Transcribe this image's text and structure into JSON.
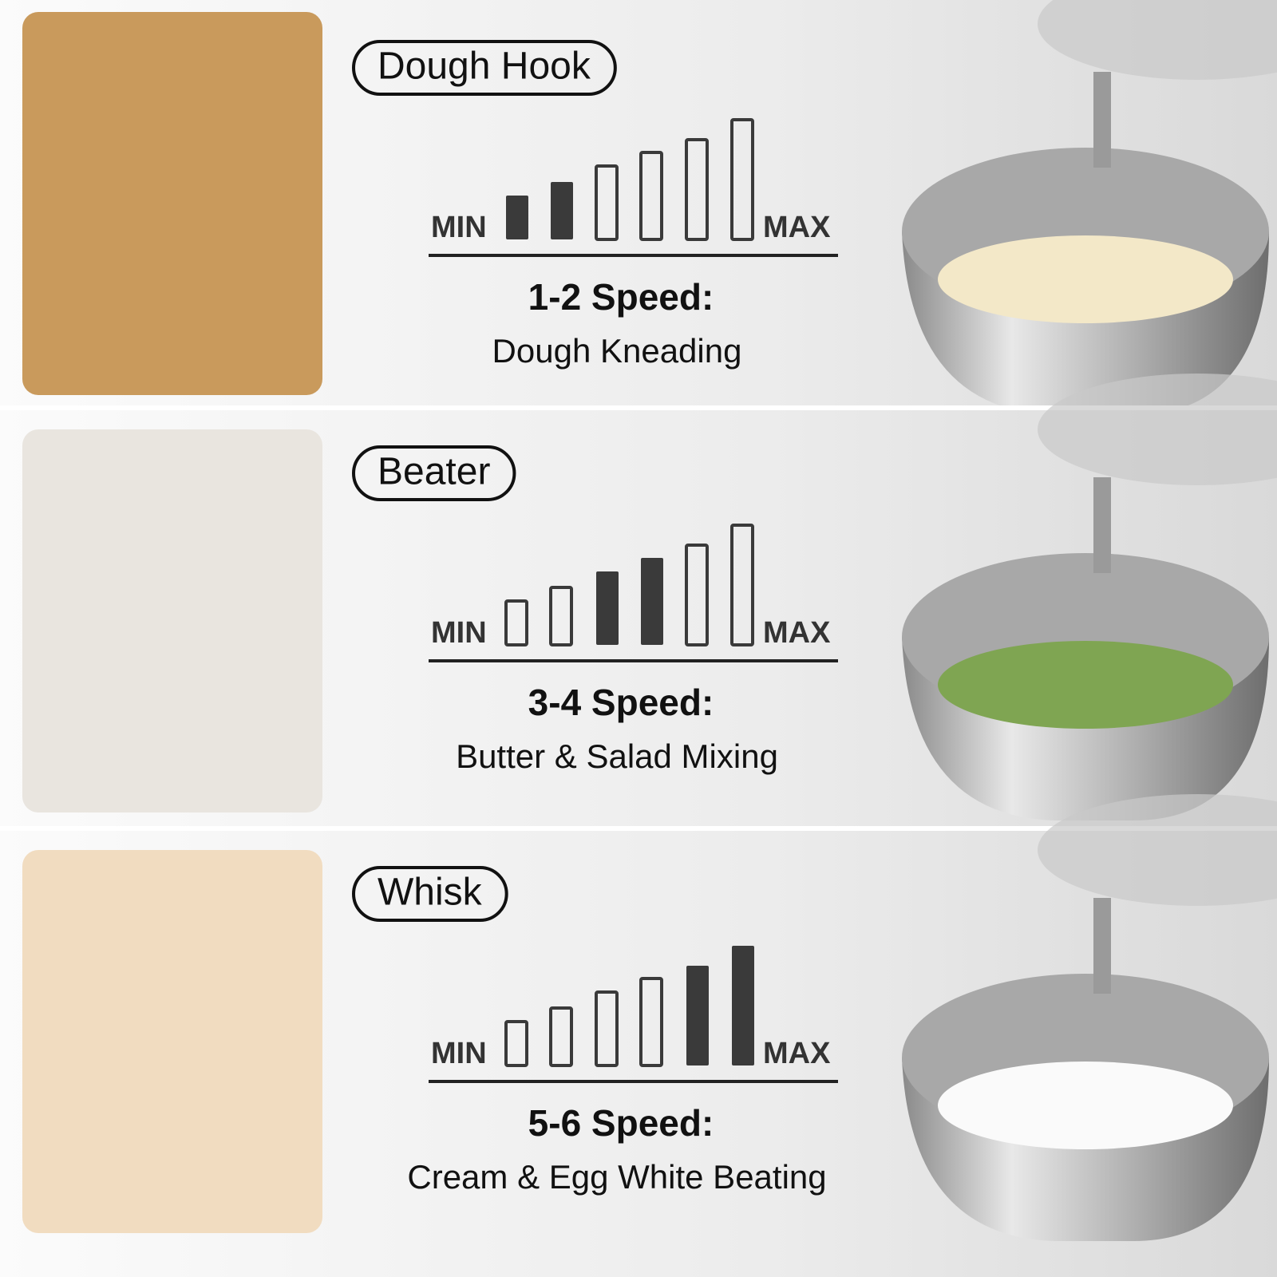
{
  "panels": [
    {
      "attachment": "Dough Hook",
      "min": "MIN",
      "max": "MAX",
      "speed": "1-2 Speed:",
      "use": "Dough Kneading"
    },
    {
      "attachment": "Beater",
      "min": "MIN",
      "max": "MAX",
      "speed": "3-4 Speed:",
      "use": "Butter & Salad Mixing"
    },
    {
      "attachment": "Whisk",
      "min": "MIN",
      "max": "MAX",
      "speed": "5-6 Speed:",
      "use": "Cream & Egg White Beating"
    }
  ]
}
